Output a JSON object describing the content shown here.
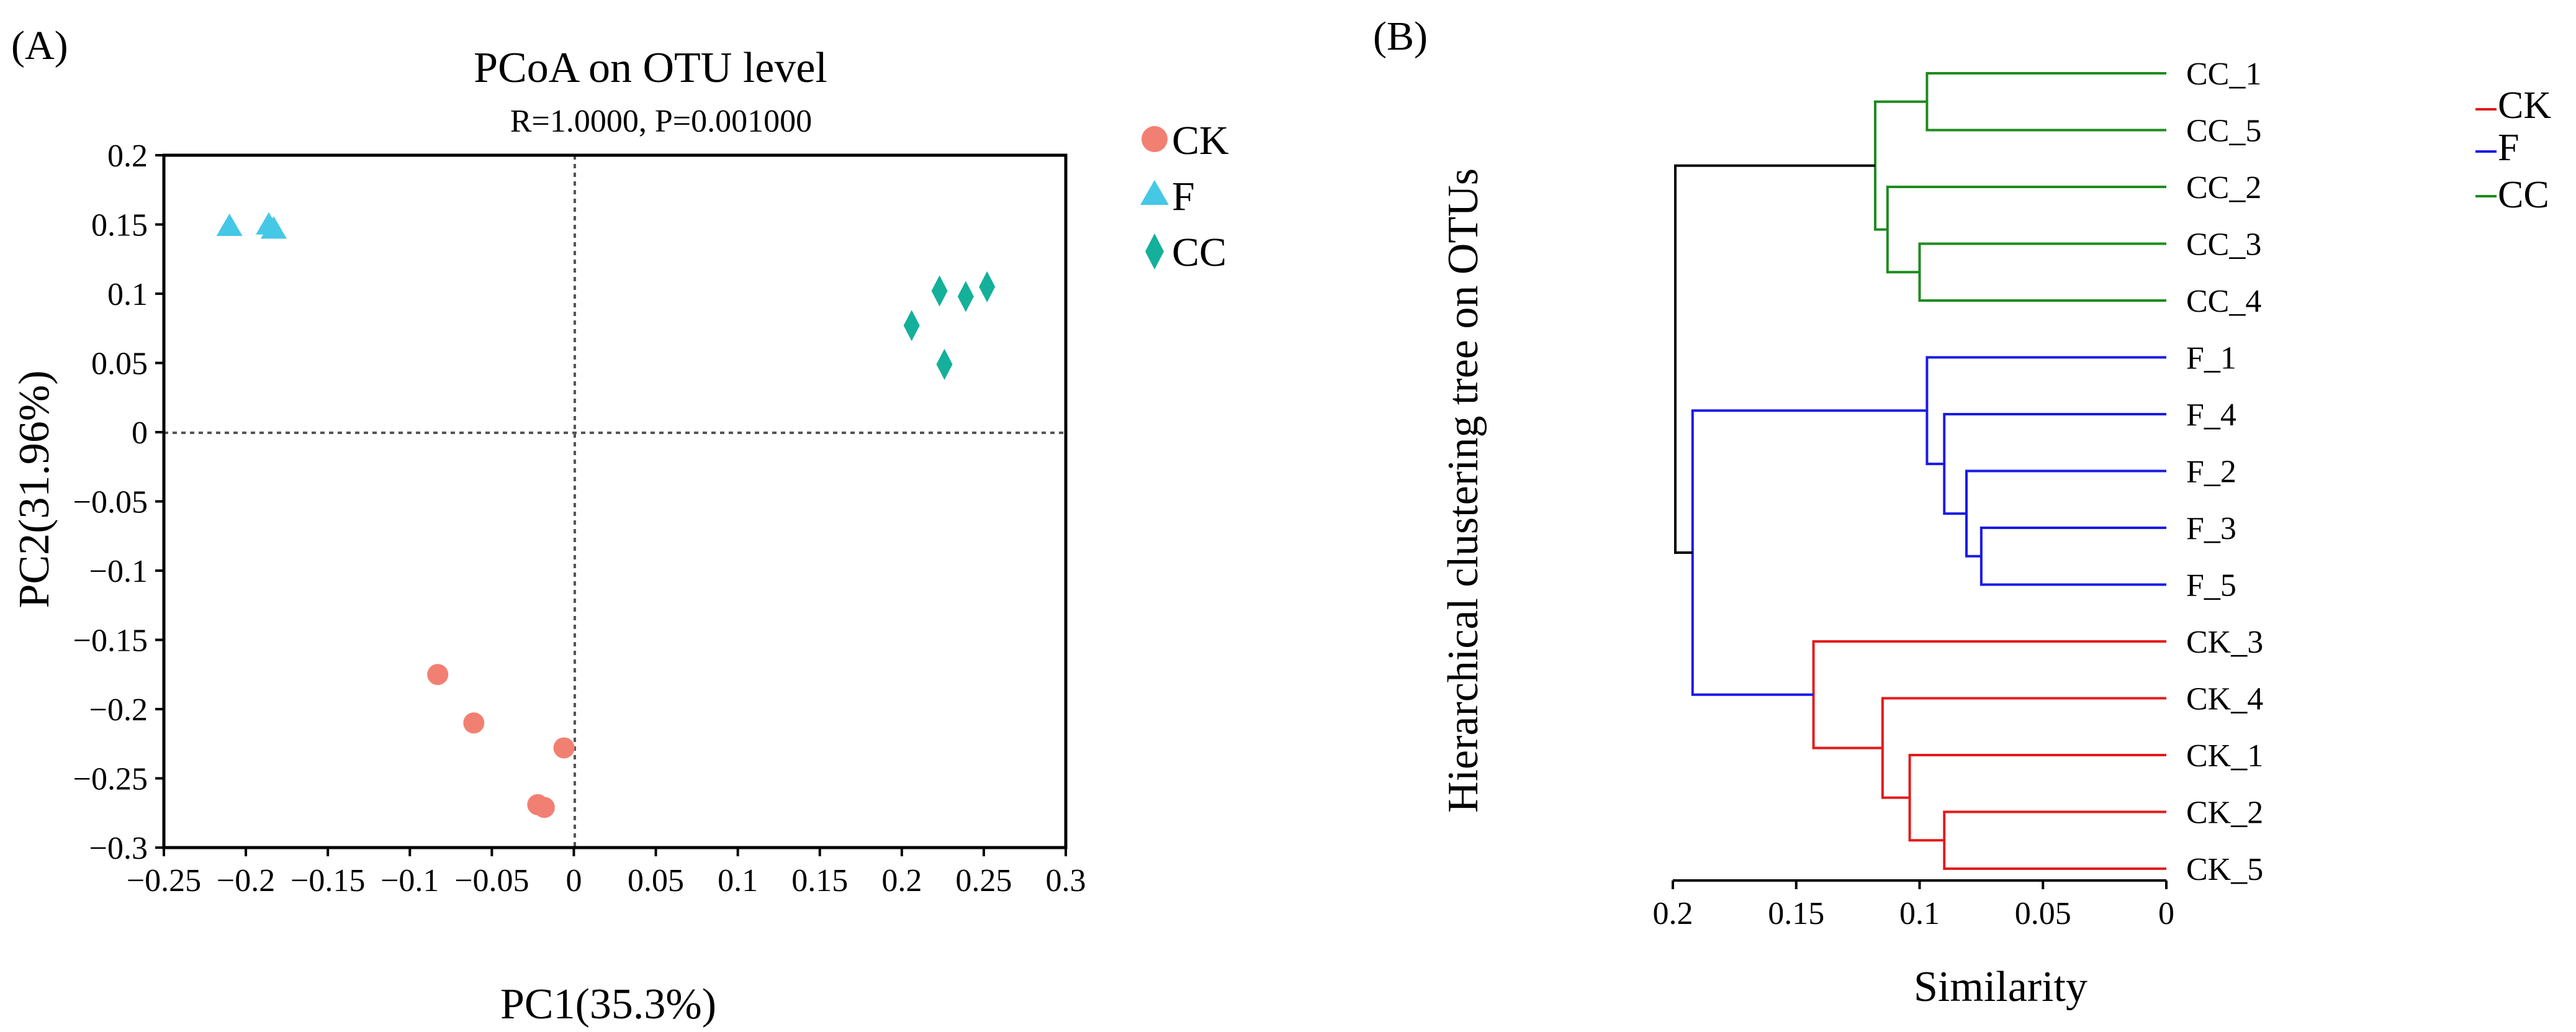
{
  "colors": {
    "CK": "#F28072",
    "F": "#45C8E6",
    "CC": "#14B09A",
    "tree_CK": "#E41A1C",
    "tree_F": "#1A1AE6",
    "tree_CC": "#1E8B1E",
    "tree_root": "#000000"
  },
  "chart_data": [
    {
      "type": "scatter",
      "panel_label": "(A)",
      "title": "PCoA on OTU level",
      "subtitle": "R=1.0000, P=0.001000",
      "xlabel": "PC1(35.3%)",
      "ylabel": "PC2(31.96%)",
      "xlim": [
        -0.25,
        0.3
      ],
      "ylim": [
        -0.3,
        0.2
      ],
      "xticks": [
        -0.25,
        -0.2,
        -0.15,
        -0.1,
        -0.05,
        0,
        0.05,
        0.1,
        0.15,
        0.2,
        0.25,
        0.3
      ],
      "xtick_labels": [
        "−0.25",
        "−0.2",
        "−0.15",
        "−0.1",
        "−0.05",
        "0",
        "0.05",
        "0.1",
        "0.15",
        "0.2",
        "0.25",
        "0.3"
      ],
      "yticks": [
        -0.3,
        -0.25,
        -0.2,
        -0.15,
        -0.1,
        -0.05,
        0,
        0.05,
        0.1,
        0.15,
        0.2
      ],
      "ytick_labels": [
        "−0.3",
        "−0.25",
        "−0.2",
        "−0.15",
        "−0.1",
        "−0.05",
        "0",
        "0.05",
        "0.1",
        "0.15",
        "0.2"
      ],
      "reference_lines": "dotted lines at x=0 and y=0",
      "series": [
        {
          "name": "CK",
          "marker": "circle",
          "points": [
            [
              -0.083,
              -0.175
            ],
            [
              -0.061,
              -0.21
            ],
            [
              -0.006,
              -0.228
            ],
            [
              -0.022,
              -0.269
            ],
            [
              -0.018,
              -0.271
            ]
          ]
        },
        {
          "name": "F",
          "marker": "triangle",
          "points": [
            [
              -0.21,
              0.148
            ],
            [
              -0.186,
              0.149
            ],
            [
              -0.183,
              0.146
            ]
          ]
        },
        {
          "name": "CC",
          "marker": "diamond",
          "points": [
            [
              0.206,
              0.077
            ],
            [
              0.223,
              0.102
            ],
            [
              0.239,
              0.098
            ],
            [
              0.252,
              0.105
            ],
            [
              0.226,
              0.049
            ]
          ]
        }
      ]
    },
    {
      "type": "dendrogram",
      "panel_label": "(B)",
      "ylabel": "Hierarchical clustering tree on OTUs",
      "xlabel": "Similarity",
      "xlim": [
        0.2,
        0
      ],
      "xticks": [
        0.2,
        0.15,
        0.1,
        0.05,
        0
      ],
      "xtick_labels": [
        "0.2",
        "0.15",
        "0.1",
        "0.05",
        "0"
      ],
      "legend": [
        "CK",
        "F",
        "CC"
      ],
      "leaves": [
        "CC_1",
        "CC_5",
        "CC_2",
        "CC_3",
        "CC_4",
        "F_1",
        "F_4",
        "F_2",
        "F_3",
        "F_5",
        "CK_3",
        "CK_4",
        "CK_1",
        "CK_2",
        "CK_5"
      ],
      "leaf_groups": [
        "CC",
        "CC",
        "CC",
        "CC",
        "CC",
        "F",
        "F",
        "F",
        "F",
        "F",
        "CK",
        "CK",
        "CK",
        "CK",
        "CK"
      ],
      "merges": [
        {
          "a": "CC_1",
          "b": "CC_5",
          "height": 0.097,
          "group": "CC"
        },
        {
          "a": "CC_3",
          "b": "CC_4",
          "height": 0.1,
          "group": "CC"
        },
        {
          "a": "CC_2",
          "b": "CC_3+CC_4",
          "height": 0.113,
          "group": "CC"
        },
        {
          "a": "CC_1+CC_5",
          "b": "CC_2+CC_3+CC_4",
          "height": 0.118,
          "group": "CC"
        },
        {
          "a": "F_3",
          "b": "F_5",
          "height": 0.075,
          "group": "F"
        },
        {
          "a": "F_2",
          "b": "F_3+F_5",
          "height": 0.081,
          "group": "F"
        },
        {
          "a": "F_4",
          "b": "F_2+F_3+F_5",
          "height": 0.09,
          "group": "F"
        },
        {
          "a": "F_1",
          "b": "F_4+F_2+F_3+F_5",
          "height": 0.097,
          "group": "F"
        },
        {
          "a": "CK_2",
          "b": "CK_5",
          "height": 0.09,
          "group": "CK"
        },
        {
          "a": "CK_1",
          "b": "CK_2+CK_5",
          "height": 0.104,
          "group": "CK"
        },
        {
          "a": "CK_4",
          "b": "CK_1+CK_2+CK_5",
          "height": 0.115,
          "group": "CK"
        },
        {
          "a": "CK_3",
          "b": "CK_4+CK_1+CK_2+CK_5",
          "height": 0.143,
          "group": "CK"
        },
        {
          "a": "F",
          "b": "CK",
          "height": 0.192,
          "group": "F"
        },
        {
          "a": "CC",
          "b": "F+CK",
          "height": 0.199,
          "group": "root"
        }
      ]
    }
  ]
}
